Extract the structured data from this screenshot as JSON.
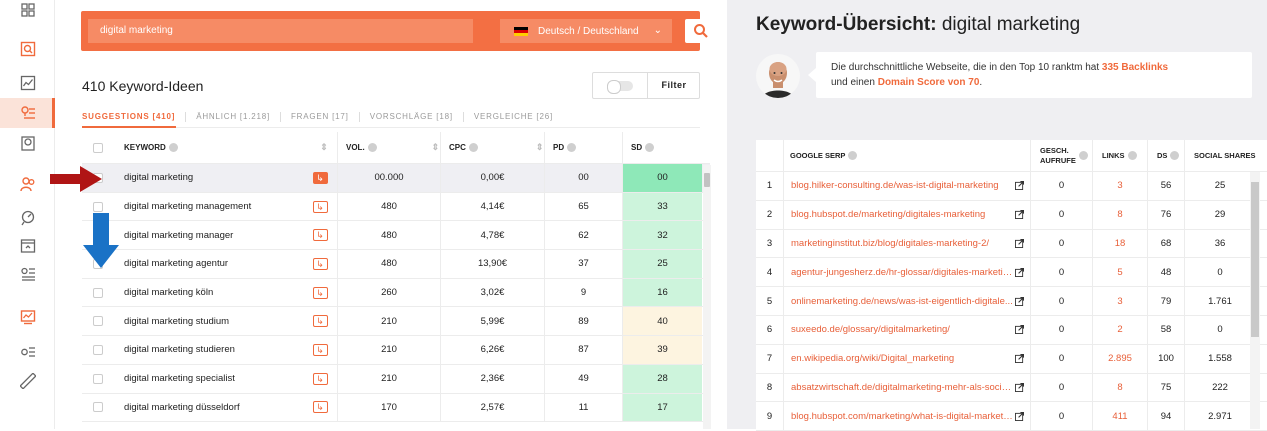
{
  "colors": {
    "accent": "#f06a3c",
    "sd_green": "#cdf4dc",
    "sd_green_strong": "#8ee8b8",
    "sd_yellow": "#fdf4e0"
  },
  "sidebar": {
    "icons": [
      "grid-icon",
      "magnifier-report-icon",
      "chart-icon",
      "keyword-ideas-icon",
      "clipboard-icon",
      "users-icon",
      "site-audit-icon",
      "upload-icon",
      "keyword-list-icon",
      "monitor-chart-icon",
      "settings-list-icon",
      "ruler-icon"
    ]
  },
  "search": {
    "value": "digital marketing",
    "language": "Deutsch / Deutschland"
  },
  "ideas": {
    "title": "410 Keyword-Ideen",
    "filter_label": "Filter"
  },
  "tabs": [
    {
      "label": "SUGGESTIONS [410]"
    },
    {
      "label": "ÄHNLICH [1.218]"
    },
    {
      "label": "FRAGEN [17]"
    },
    {
      "label": "VORSCHLÄGE [18]"
    },
    {
      "label": "VERGLEICHE [26]"
    }
  ],
  "kw_table": {
    "headers": {
      "keyword": "KEYWORD",
      "vol": "VOL.",
      "cpc": "CPC",
      "pd": "PD",
      "sd": "SD"
    },
    "rows": [
      {
        "keyword": "digital marketing",
        "vol": "00.000",
        "cpc": "0,00€",
        "pd": "00",
        "sd": "00",
        "sd_level": "strong"
      },
      {
        "keyword": "digital marketing management",
        "vol": "480",
        "cpc": "4,14€",
        "pd": "65",
        "sd": "33",
        "sd_level": "green"
      },
      {
        "keyword": "digital marketing manager",
        "vol": "480",
        "cpc": "4,78€",
        "pd": "62",
        "sd": "32",
        "sd_level": "green"
      },
      {
        "keyword": "digital marketing agentur",
        "vol": "480",
        "cpc": "13,90€",
        "pd": "37",
        "sd": "25",
        "sd_level": "green"
      },
      {
        "keyword": "digital marketing köln",
        "vol": "260",
        "cpc": "3,02€",
        "pd": "9",
        "sd": "16",
        "sd_level": "green"
      },
      {
        "keyword": "digital marketing studium",
        "vol": "210",
        "cpc": "5,99€",
        "pd": "89",
        "sd": "40",
        "sd_level": "yellow"
      },
      {
        "keyword": "digital marketing studieren",
        "vol": "210",
        "cpc": "6,26€",
        "pd": "87",
        "sd": "39",
        "sd_level": "yellow"
      },
      {
        "keyword": "digital marketing specialist",
        "vol": "210",
        "cpc": "2,36€",
        "pd": "49",
        "sd": "28",
        "sd_level": "green"
      },
      {
        "keyword": "digital marketing düsseldorf",
        "vol": "170",
        "cpc": "2,57€",
        "pd": "11",
        "sd": "17",
        "sd_level": "green"
      }
    ]
  },
  "overview": {
    "title_bold": "Keyword-Übersicht:",
    "title_keyword": "digital marketing",
    "info_pre": "Die durchschnittliche Webseite, die in den Top 10 ranktm hat ",
    "info_backlinks": "335 Backlinks",
    "info_mid": "und einen ",
    "info_score": "Domain Score von 70",
    "info_end": "."
  },
  "serp_table": {
    "headers": {
      "serp": "GOOGLE SERP",
      "visits_1": "GESCH.",
      "visits_2": "AUFRUFE",
      "links": "LINKS",
      "ds": "DS",
      "social": "SOCIAL SHARES"
    },
    "rows": [
      {
        "n": "1",
        "url": "blog.hilker-consulting.de/was-ist-digital-marketing",
        "visits": "0",
        "links": "3",
        "ds": "56",
        "social": "25"
      },
      {
        "n": "2",
        "url": "blog.hubspot.de/marketing/digitales-marketing",
        "visits": "0",
        "links": "8",
        "ds": "76",
        "social": "29"
      },
      {
        "n": "3",
        "url": "marketinginstitut.biz/blog/digitales-marketing-2/",
        "visits": "0",
        "links": "18",
        "ds": "68",
        "social": "36"
      },
      {
        "n": "4",
        "url": "agentur-jungesherz.de/hr-glossar/digitales-marketin...",
        "visits": "0",
        "links": "5",
        "ds": "48",
        "social": "0"
      },
      {
        "n": "5",
        "url": "onlinemarketing.de/news/was-ist-eigentlich-digitale...",
        "visits": "0",
        "links": "3",
        "ds": "79",
        "social": "1.761"
      },
      {
        "n": "6",
        "url": "suxeedo.de/glossary/digitalmarketing/",
        "visits": "0",
        "links": "2",
        "ds": "58",
        "social": "0"
      },
      {
        "n": "7",
        "url": "en.wikipedia.org/wiki/Digital_marketing",
        "visits": "0",
        "links": "2.895",
        "ds": "100",
        "social": "1.558"
      },
      {
        "n": "8",
        "url": "absatzwirtschaft.de/digitalmarketing-mehr-als-social...",
        "visits": "0",
        "links": "8",
        "ds": "75",
        "social": "222"
      },
      {
        "n": "9",
        "url": "blog.hubspot.com/marketing/what-is-digital-marketi...",
        "visits": "0",
        "links": "411",
        "ds": "94",
        "social": "2.971"
      }
    ]
  }
}
